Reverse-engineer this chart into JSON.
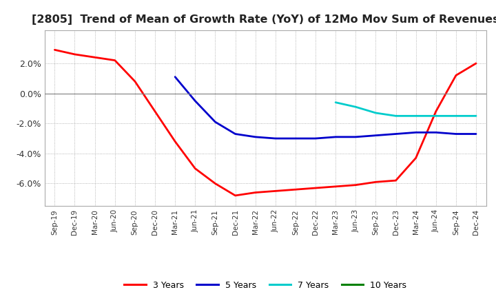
{
  "title": "[2805]  Trend of Mean of Growth Rate (YoY) of 12Mo Mov Sum of Revenues",
  "title_fontsize": 11.5,
  "background_color": "#ffffff",
  "plot_bg_color": "#ffffff",
  "grid_color": "#888888",
  "xlabels": [
    "Sep-19",
    "Dec-19",
    "Mar-20",
    "Jun-20",
    "Sep-20",
    "Dec-20",
    "Mar-21",
    "Jun-21",
    "Sep-21",
    "Dec-21",
    "Mar-22",
    "Jun-22",
    "Sep-22",
    "Dec-22",
    "Mar-23",
    "Jun-23",
    "Sep-23",
    "Dec-23",
    "Mar-24",
    "Jun-24",
    "Sep-24",
    "Dec-24"
  ],
  "ylim": [
    -0.075,
    0.042
  ],
  "yticks": [
    -0.06,
    -0.04,
    -0.02,
    0.0,
    0.02
  ],
  "series": {
    "3years": {
      "color": "#ff0000",
      "label": "3 Years",
      "x": [
        0,
        1,
        2,
        3,
        4,
        5,
        6,
        7,
        8,
        9,
        10,
        11,
        12,
        13,
        14,
        15,
        16,
        17,
        18,
        19,
        20,
        21
      ],
      "y": [
        0.029,
        0.026,
        0.024,
        0.022,
        0.008,
        -0.012,
        -0.032,
        -0.05,
        -0.06,
        -0.068,
        -0.066,
        -0.065,
        -0.064,
        -0.063,
        -0.062,
        -0.061,
        -0.059,
        -0.058,
        -0.043,
        -0.012,
        0.012,
        0.02
      ]
    },
    "5years": {
      "color": "#0000cc",
      "label": "5 Years",
      "x": [
        6,
        7,
        8,
        9,
        10,
        11,
        12,
        13,
        14,
        15,
        16,
        17,
        18,
        19,
        20,
        21
      ],
      "y": [
        0.011,
        -0.005,
        -0.019,
        -0.027,
        -0.029,
        -0.03,
        -0.03,
        -0.03,
        -0.029,
        -0.029,
        -0.028,
        -0.027,
        -0.026,
        -0.026,
        -0.027,
        -0.027
      ]
    },
    "7years": {
      "color": "#00cccc",
      "label": "7 Years",
      "x": [
        14,
        15,
        16,
        17,
        18,
        19,
        20,
        21
      ],
      "y": [
        -0.006,
        -0.009,
        -0.013,
        -0.015,
        -0.015,
        -0.015,
        -0.015,
        -0.015
      ]
    },
    "10years": {
      "color": "#008000",
      "label": "10 Years",
      "x": [],
      "y": []
    }
  },
  "legend_entries": [
    {
      "label": "3 Years",
      "color": "#ff0000"
    },
    {
      "label": "5 Years",
      "color": "#0000cc"
    },
    {
      "label": "7 Years",
      "color": "#00cccc"
    },
    {
      "label": "10 Years",
      "color": "#008000"
    }
  ]
}
